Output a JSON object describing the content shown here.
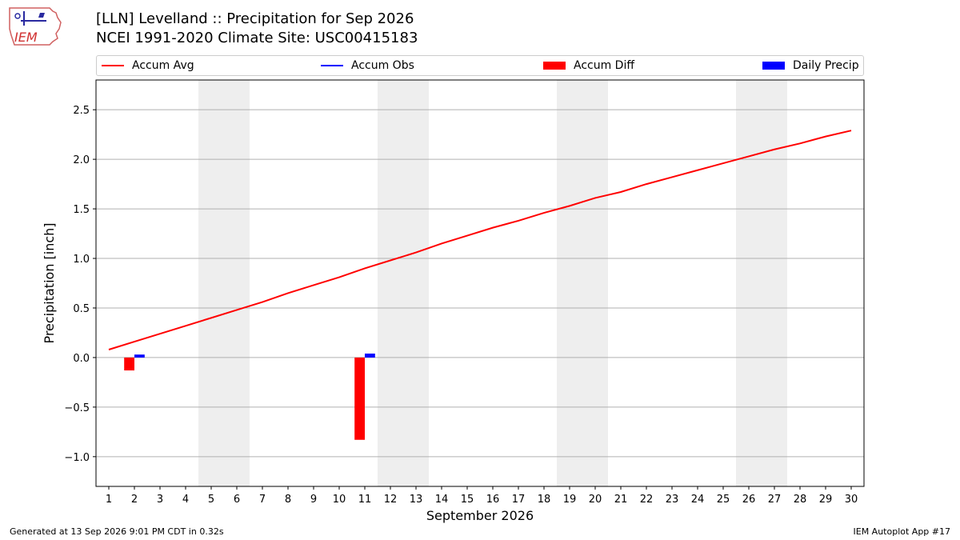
{
  "header": {
    "title_line1": "[LLN] Levelland :: Precipitation for Sep 2026",
    "title_line2": "NCEI 1991-2020 Climate Site: USC00415183",
    "logo_text": "IEM"
  },
  "legend": {
    "items": [
      {
        "label": "Accum Avg",
        "color": "#ff0000",
        "kind": "line"
      },
      {
        "label": "Accum Obs",
        "color": "#0000ff",
        "kind": "line"
      },
      {
        "label": "Accum Diff",
        "color": "#ff0000",
        "kind": "bar"
      },
      {
        "label": "Daily Precip",
        "color": "#0000ff",
        "kind": "bar"
      }
    ]
  },
  "chart_data": {
    "type": "line",
    "xlabel": "September 2026",
    "ylabel": "Precipitation [inch]",
    "xlim": [
      0.5,
      30.5
    ],
    "ylim": [
      -1.3,
      2.8
    ],
    "x": [
      1,
      2,
      3,
      4,
      5,
      6,
      7,
      8,
      9,
      10,
      11,
      12,
      13,
      14,
      15,
      16,
      17,
      18,
      19,
      20,
      21,
      22,
      23,
      24,
      25,
      26,
      27,
      28,
      29,
      30
    ],
    "x_tick_labels": [
      "1",
      "2",
      "3",
      "4",
      "5",
      "6",
      "7",
      "8",
      "9",
      "10",
      "11",
      "12",
      "13",
      "14",
      "15",
      "16",
      "17",
      "18",
      "19",
      "20",
      "21",
      "22",
      "23",
      "24",
      "25",
      "26",
      "27",
      "28",
      "29",
      "30"
    ],
    "y_ticks": [
      -1.0,
      -0.5,
      0.0,
      0.5,
      1.0,
      1.5,
      2.0,
      2.5
    ],
    "y_tick_labels": [
      "−1.0",
      "−0.5",
      "0.0",
      "0.5",
      "1.0",
      "1.5",
      "2.0",
      "2.5"
    ],
    "grid": "horizontal",
    "weekend_shading": [
      [
        4.5,
        6.5
      ],
      [
        11.5,
        13.5
      ],
      [
        18.5,
        20.5
      ],
      [
        25.5,
        27.5
      ]
    ],
    "series": [
      {
        "name": "Accum Avg",
        "type": "line",
        "color": "#ff0000",
        "values": [
          0.08,
          0.16,
          0.24,
          0.32,
          0.4,
          0.48,
          0.56,
          0.65,
          0.73,
          0.81,
          0.9,
          0.98,
          1.06,
          1.15,
          1.23,
          1.31,
          1.38,
          1.46,
          1.53,
          1.61,
          1.67,
          1.75,
          1.82,
          1.89,
          1.96,
          2.03,
          2.1,
          2.16,
          2.23,
          2.29
        ]
      },
      {
        "name": "Accum Diff",
        "type": "bar",
        "color": "#ff0000",
        "points": [
          {
            "x": 2,
            "y": -0.13
          },
          {
            "x": 11,
            "y": -0.83
          }
        ]
      },
      {
        "name": "Daily Precip",
        "type": "bar",
        "color": "#0000ff",
        "points": [
          {
            "x": 2,
            "y": 0.03
          },
          {
            "x": 11,
            "y": 0.04
          }
        ]
      }
    ]
  },
  "footer": {
    "generated": "Generated at 13 Sep 2026 9:01 PM CDT in 0.32s",
    "app": "IEM Autoplot App #17"
  }
}
